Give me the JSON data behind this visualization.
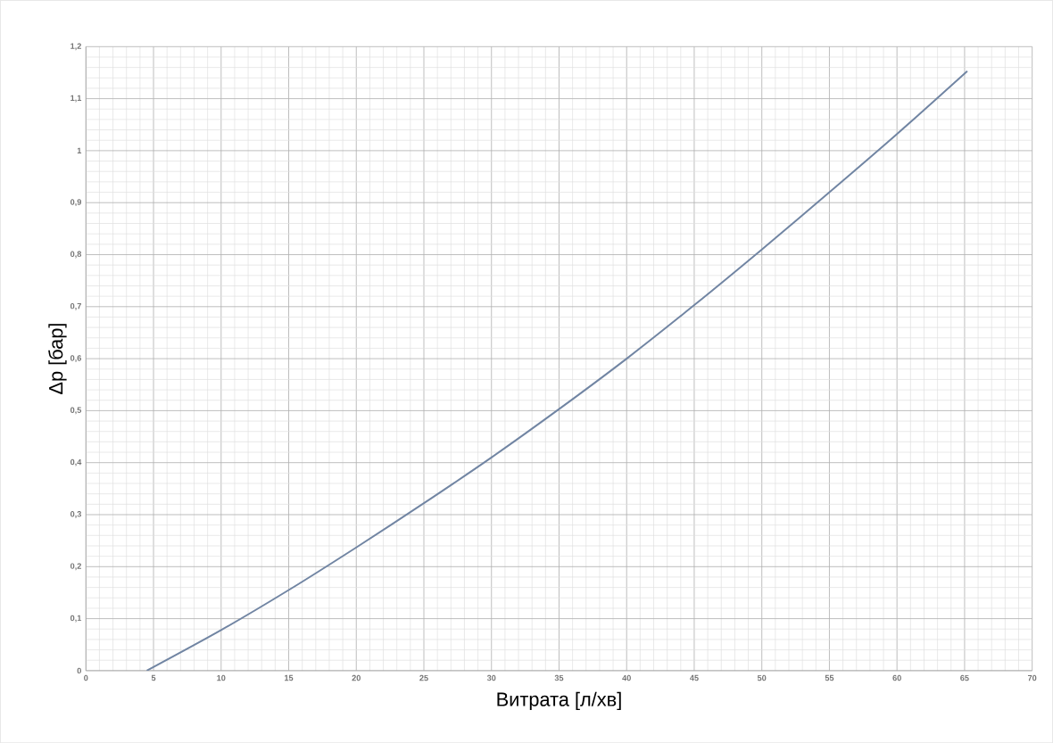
{
  "chart_data": {
    "type": "line",
    "xlabel": "Витрата [л/хв]",
    "ylabel": "Δp [бар]",
    "x": [
      4.5,
      10,
      15,
      20,
      25,
      30,
      35,
      40,
      45,
      50,
      55,
      60,
      65.2
    ],
    "series": [
      {
        "color": "#7185a3",
        "values": [
          0,
          0.078,
          0.155,
          0.237,
          0.322,
          0.41,
          0.503,
          0.6,
          0.703,
          0.81,
          0.92,
          1.032,
          1.153
        ]
      }
    ],
    "xlim": [
      0,
      70
    ],
    "ylim": [
      0,
      1.2
    ],
    "xticks": [
      0,
      5,
      10,
      15,
      20,
      25,
      30,
      35,
      40,
      45,
      50,
      55,
      60,
      65,
      70
    ],
    "yticks": [
      0,
      {
        "value": 0.1,
        "label": "0,1"
      },
      {
        "value": 0.2,
        "label": "0,2"
      },
      {
        "value": 0.3,
        "label": "0,3"
      },
      {
        "value": 0.4,
        "label": "0,4"
      },
      {
        "value": 0.5,
        "label": "0,5"
      },
      {
        "value": 0.6,
        "label": "0,6"
      },
      {
        "value": 0.7,
        "label": "0,7"
      },
      {
        "value": 0.8,
        "label": "0,8"
      },
      {
        "value": 0.9,
        "label": "0,9"
      },
      1,
      {
        "value": 1.1,
        "label": "1,1"
      },
      {
        "value": 1.2,
        "label": "1,2"
      }
    ],
    "grid": true,
    "marker": "none",
    "line_style": "solid"
  }
}
